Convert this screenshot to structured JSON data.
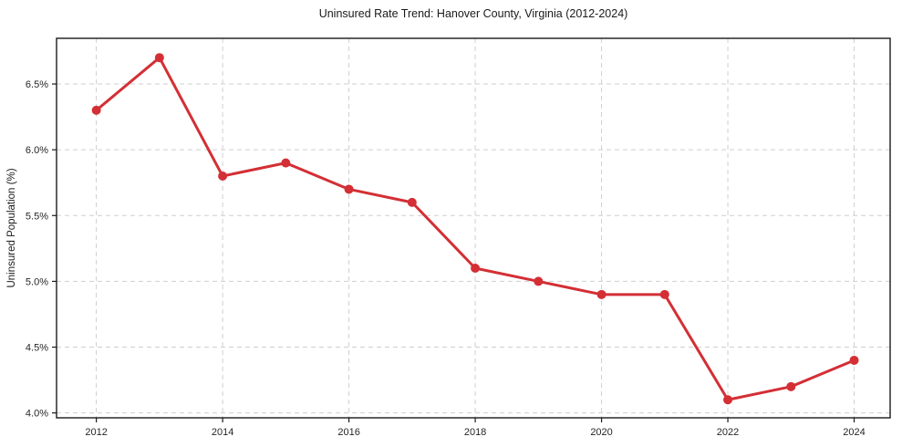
{
  "chart_data": {
    "type": "line",
    "title": "Uninsured Rate Trend: Hanover County, Virginia (2012-2024)",
    "xlabel": "",
    "ylabel": "Uninsured Population (%)",
    "x": [
      2012,
      2013,
      2014,
      2015,
      2016,
      2017,
      2018,
      2019,
      2020,
      2021,
      2022,
      2023,
      2024
    ],
    "values": [
      6.3,
      6.7,
      5.8,
      5.9,
      5.7,
      5.6,
      5.1,
      5.0,
      4.9,
      4.9,
      4.1,
      4.2,
      4.4
    ],
    "xticks": [
      2012,
      2014,
      2016,
      2018,
      2020,
      2022,
      2024
    ],
    "xtick_labels": [
      "2012",
      "2014",
      "2016",
      "2018",
      "2020",
      "2022",
      "2024"
    ],
    "yticks": [
      4.0,
      4.5,
      5.0,
      5.5,
      6.0,
      6.5
    ],
    "ytick_labels": [
      "4.0%",
      "4.5%",
      "5.0%",
      "5.5%",
      "6.0%",
      "6.5%"
    ],
    "xlim": [
      2011.37,
      2024.57
    ],
    "ylim": [
      3.963,
      6.847
    ],
    "grid": true,
    "grid_style": "dashed",
    "legend": false,
    "marker": "circle",
    "marker_radius": 5,
    "line_width": 3
  },
  "colors": {
    "line": "#d32f35",
    "grid": "#cfcfcf",
    "spine": "#1a1a1a",
    "tick": "#1a1a1a",
    "text": "#262626",
    "background": "#ffffff"
  }
}
